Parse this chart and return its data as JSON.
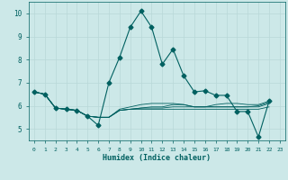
{
  "xlabel": "Humidex (Indice chaleur)",
  "ylabel": "",
  "bg_color": "#cce8e8",
  "grid_color": "#b8d8d8",
  "line_color": "#006060",
  "xlim": [
    -0.5,
    23.5
  ],
  "ylim": [
    4.5,
    10.5
  ],
  "xticks": [
    0,
    1,
    2,
    3,
    4,
    5,
    6,
    7,
    8,
    9,
    10,
    11,
    12,
    13,
    14,
    15,
    16,
    17,
    18,
    19,
    20,
    21,
    22,
    23
  ],
  "yticks": [
    5,
    6,
    7,
    8,
    9,
    10
  ],
  "main_x": [
    0,
    1,
    2,
    3,
    4,
    5,
    6,
    7,
    8,
    9,
    10,
    11,
    12,
    13,
    14,
    15,
    16,
    17,
    18,
    19,
    20,
    21,
    22
  ],
  "main_y": [
    6.6,
    6.5,
    5.9,
    5.85,
    5.8,
    5.55,
    5.15,
    7.0,
    8.1,
    9.4,
    10.1,
    9.4,
    7.8,
    8.45,
    7.3,
    6.6,
    6.65,
    6.45,
    6.45,
    5.75,
    5.75,
    4.65,
    6.2
  ],
  "aux_series": [
    [
      6.6,
      6.5,
      5.9,
      5.85,
      5.8,
      5.55,
      5.5,
      5.5,
      5.85,
      5.95,
      6.05,
      6.1,
      6.1,
      6.1,
      6.05,
      5.95,
      5.95,
      6.05,
      6.1,
      6.1,
      6.05,
      6.05,
      6.2
    ],
    [
      6.6,
      6.5,
      5.9,
      5.85,
      5.8,
      5.55,
      5.5,
      5.5,
      5.8,
      5.85,
      5.85,
      5.85,
      5.85,
      5.85,
      5.85,
      5.85,
      5.85,
      5.85,
      5.85,
      5.85,
      5.85,
      5.85,
      5.95
    ],
    [
      6.6,
      6.5,
      5.9,
      5.85,
      5.8,
      5.55,
      5.5,
      5.5,
      5.8,
      5.85,
      5.9,
      5.9,
      5.9,
      5.95,
      5.95,
      5.95,
      5.95,
      5.95,
      5.95,
      5.95,
      5.95,
      5.95,
      6.1
    ],
    [
      6.6,
      6.5,
      5.9,
      5.85,
      5.8,
      5.55,
      5.5,
      5.5,
      5.8,
      5.85,
      5.9,
      5.95,
      5.95,
      6.05,
      6.05,
      5.95,
      5.95,
      5.95,
      5.95,
      5.95,
      5.95,
      6.0,
      6.15
    ]
  ]
}
